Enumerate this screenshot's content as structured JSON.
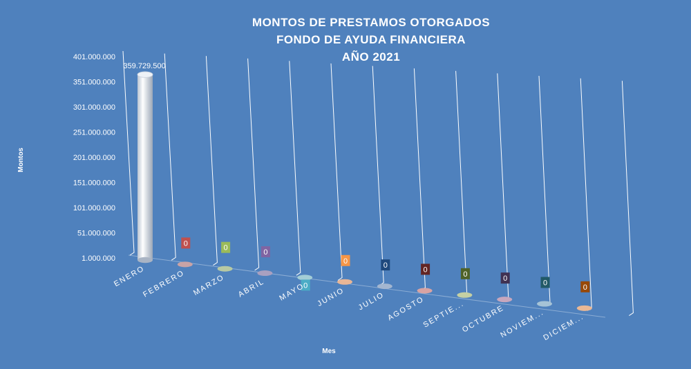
{
  "chart_data": {
    "type": "bar",
    "title_lines": [
      "MONTOS  DE  PRESTAMOS  OTORGADOS",
      "FONDO  DE  AYUDA  FINANCIERA",
      "AÑO  2021"
    ],
    "xlabel": "Mes",
    "ylabel": "Montos",
    "categories": [
      "ENERO",
      "FEBRERO",
      "MARZO",
      "ABRIL",
      "MAYO",
      "JUNIO",
      "JULIO",
      "AGOSTO",
      "SEPTIE...",
      "OCTUBRE",
      "NOVIEM...",
      "DICIEM..."
    ],
    "values": [
      359729500,
      0,
      0,
      0,
      0,
      0,
      0,
      0,
      0,
      0,
      0,
      0
    ],
    "value_labels": [
      "359.729.500",
      "0",
      "0",
      "0",
      "0",
      "0",
      "0",
      "0",
      "0",
      "0",
      "0",
      "0"
    ],
    "ylim": [
      1000000,
      401000000
    ],
    "yticks": [
      "1.000.000",
      "51.000.000",
      "101.000.000",
      "151.000.000",
      "201.000.000",
      "251.000.000",
      "301.000.000",
      "351.000.000",
      "401.000.000"
    ],
    "grid": true,
    "legend": "none",
    "bar_colors": [
      "#dde6f0",
      "#c9a3a6",
      "#b7c9a3",
      "#a9a0c0",
      "#a3cdd6",
      "#e8b696",
      "#a3b6d0",
      "#d8a3a3",
      "#c5d0a3",
      "#c7a7bd",
      "#a6c3d6",
      "#eab895"
    ],
    "label_box_colors": [
      "#4f81bd",
      "#c0504d",
      "#9bbb59",
      "#8064a2",
      "#4bacc6",
      "#f79646",
      "#1f497d",
      "#632523",
      "#4f6228",
      "#403152",
      "#215967",
      "#984807"
    ]
  }
}
